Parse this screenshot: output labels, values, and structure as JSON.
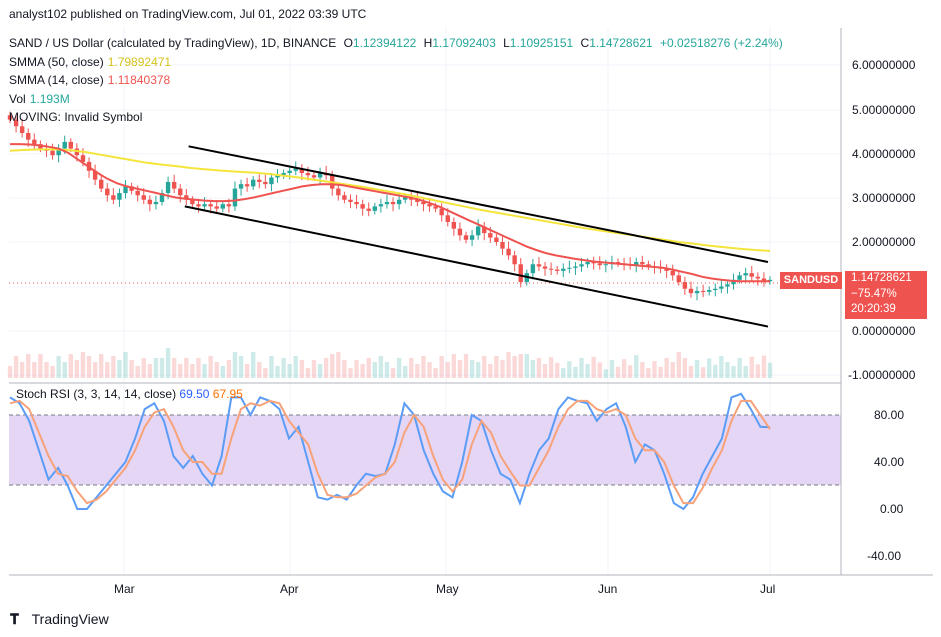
{
  "header": {
    "published": "analyst102 published on TradingView.com, Jul 01, 2022 03:39 UTC"
  },
  "legend": {
    "title": "SAND / US Dollar (calculated by TradingView), 1D, BINANCE",
    "ohlc": [
      {
        "label": "O",
        "value": "1.12394122"
      },
      {
        "label": "H",
        "value": "1.17092403"
      },
      {
        "label": "L",
        "value": "1.10925151"
      },
      {
        "label": "C",
        "value": "1.14728621"
      }
    ],
    "change": "+0.02518276 (+2.24%)",
    "sma50_label": "SMMA (50, close)",
    "sma50_value": "1.79892471",
    "sma14_label": "SMMA (14, close)",
    "sma14_value": "1.11840378",
    "vol_label": "Vol",
    "vol_value": "1.193M",
    "moving_label": "MOVING: Invalid Symbol"
  },
  "stoch_legend": {
    "label": "Stoch RSI (3, 3, 14, 14, close)",
    "k": "69.50",
    "d": "67.95"
  },
  "price_axis": [
    "6.00000000",
    "5.00000000",
    "4.00000000",
    "3.00000000",
    "2.00000000",
    "0.00000000",
    "-1.00000000"
  ],
  "stoch_axis": [
    "80.00",
    "40.00",
    "0.00",
    "-40.00"
  ],
  "x_axis": [
    "Mar",
    "Apr",
    "May",
    "Jun",
    "Jul"
  ],
  "badge": {
    "symbol": "SANDUSD",
    "price": "1.14728621",
    "pct": "−75.47%",
    "countdown": "20:20:39"
  },
  "footer": {
    "brand": "TradingView"
  },
  "colors": {
    "up": "#26a69a",
    "down": "#ef5350",
    "smma50": "#f4e53b",
    "smma14": "#ef5350",
    "stoch_k": "#5b9cf6",
    "stoch_d": "#f7a278",
    "band": "#e1cff5",
    "channel": "#000000"
  },
  "chart_data": [
    {
      "type": "candlestick",
      "title": "SAND / US Dollar (calculated by TradingView), 1D, BINANCE",
      "x_labels": [
        "Mar",
        "Apr",
        "May",
        "Jun",
        "Jul"
      ],
      "ylim": [
        -1,
        6.5
      ],
      "closes": [
        4.75,
        4.6,
        4.45,
        4.3,
        4.2,
        4.1,
        4.05,
        3.95,
        4.1,
        4.25,
        4.1,
        3.95,
        3.8,
        3.6,
        3.4,
        3.2,
        3.05,
        2.95,
        3.1,
        3.25,
        3.15,
        3.05,
        2.95,
        2.85,
        2.9,
        3.1,
        3.35,
        3.2,
        3.05,
        2.95,
        2.85,
        2.8,
        2.85,
        2.8,
        2.75,
        2.85,
        2.8,
        3.2,
        3.3,
        3.25,
        3.4,
        3.35,
        3.3,
        3.45,
        3.5,
        3.55,
        3.6,
        3.65,
        3.55,
        3.5,
        3.45,
        3.55,
        3.5,
        3.2,
        3.05,
        2.95,
        2.9,
        2.85,
        2.75,
        2.7,
        2.8,
        2.85,
        2.9,
        2.85,
        2.95,
        3.0,
        2.95,
        2.9,
        2.85,
        2.8,
        2.75,
        2.6,
        2.45,
        2.3,
        2.15,
        2.05,
        2.15,
        2.35,
        2.2,
        2.1,
        2.0,
        1.85,
        1.7,
        1.5,
        1.1,
        1.3,
        1.5,
        1.45,
        1.4,
        1.38,
        1.35,
        1.4,
        1.42,
        1.45,
        1.5,
        1.55,
        1.52,
        1.48,
        1.5,
        1.55,
        1.52,
        1.5,
        1.48,
        1.55,
        1.5,
        1.45,
        1.43,
        1.4,
        1.35,
        1.25,
        1.1,
        0.95,
        0.85,
        0.9,
        0.88,
        0.92,
        0.95,
        1.0,
        1.05,
        1.15,
        1.25,
        1.3,
        1.22,
        1.18,
        1.12,
        1.15
      ],
      "smma14": [
        4.2,
        4.2,
        4.19,
        4.17,
        4.14,
        4.1,
        4.0,
        3.85,
        3.7,
        3.55,
        3.42,
        3.32,
        3.25,
        3.2,
        3.15,
        3.1,
        3.05,
        3.0,
        2.97,
        2.95,
        2.93,
        2.92,
        2.92,
        2.93,
        2.96,
        3.0,
        3.05,
        3.1,
        3.15,
        3.2,
        3.25,
        3.28,
        3.3,
        3.3,
        3.28,
        3.24,
        3.2,
        3.16,
        3.12,
        3.08,
        3.04,
        3.0,
        2.95,
        2.88,
        2.8,
        2.7,
        2.6,
        2.5,
        2.4,
        2.3,
        2.2,
        2.1,
        2.0,
        1.9,
        1.82,
        1.75,
        1.7,
        1.66,
        1.62,
        1.59,
        1.56,
        1.54,
        1.52,
        1.5,
        1.48,
        1.46,
        1.44,
        1.42,
        1.38,
        1.33,
        1.28,
        1.22,
        1.18,
        1.15,
        1.13,
        1.12,
        1.12,
        1.12,
        1.12
      ],
      "smma50": [
        4.05,
        4.07,
        4.08,
        4.08,
        4.06,
        4.02,
        3.96,
        3.9,
        3.84,
        3.78,
        3.74,
        3.7,
        3.66,
        3.63,
        3.6,
        3.58,
        3.56,
        3.53,
        3.49,
        3.45,
        3.4,
        3.35,
        3.3,
        3.25,
        3.19,
        3.13,
        3.07,
        3.0,
        2.93,
        2.86,
        2.79,
        2.72,
        2.66,
        2.6,
        2.54,
        2.48,
        2.42,
        2.36,
        2.3,
        2.25,
        2.2,
        2.15,
        2.1,
        2.05,
        2.0,
        1.96,
        1.92,
        1.88,
        1.85,
        1.82,
        1.8
      ],
      "channel_upper": [
        [
          4.15,
          0.3
        ],
        [
          1.55,
          0.93
        ]
      ],
      "channel_lower": [
        [
          2.8,
          0.27
        ],
        [
          0.1,
          0.93
        ]
      ]
    },
    {
      "type": "line",
      "title": "Stoch RSI (3, 3, 14, 14, close)",
      "ylim": [
        -60,
        105
      ],
      "series": [
        {
          "name": "K",
          "values": [
            95,
            90,
            75,
            50,
            25,
            35,
            20,
            0,
            0,
            10,
            20,
            30,
            40,
            60,
            85,
            90,
            75,
            45,
            35,
            45,
            30,
            20,
            45,
            95,
            95,
            80,
            95,
            92,
            85,
            60,
            70,
            40,
            10,
            8,
            12,
            8,
            20,
            30,
            28,
            30,
            55,
            90,
            80,
            50,
            30,
            15,
            10,
            40,
            80,
            75,
            50,
            30,
            25,
            5,
            30,
            50,
            60,
            85,
            95,
            92,
            90,
            75,
            85,
            90,
            70,
            40,
            55,
            50,
            30,
            5,
            0,
            10,
            30,
            45,
            60,
            95,
            98,
            85,
            70,
            69.5
          ]
        },
        {
          "name": "D",
          "values": [
            90,
            92,
            85,
            65,
            45,
            30,
            28,
            15,
            5,
            8,
            15,
            25,
            35,
            50,
            70,
            82,
            85,
            70,
            50,
            40,
            40,
            30,
            30,
            60,
            85,
            90,
            88,
            92,
            90,
            75,
            65,
            55,
            30,
            12,
            10,
            10,
            13,
            20,
            27,
            30,
            40,
            65,
            80,
            70,
            45,
            25,
            15,
            25,
            55,
            75,
            65,
            45,
            32,
            20,
            20,
            35,
            50,
            70,
            85,
            92,
            92,
            85,
            82,
            85,
            80,
            60,
            50,
            50,
            40,
            20,
            5,
            5,
            18,
            35,
            50,
            75,
            92,
            92,
            80,
            67.95
          ]
        }
      ]
    }
  ]
}
